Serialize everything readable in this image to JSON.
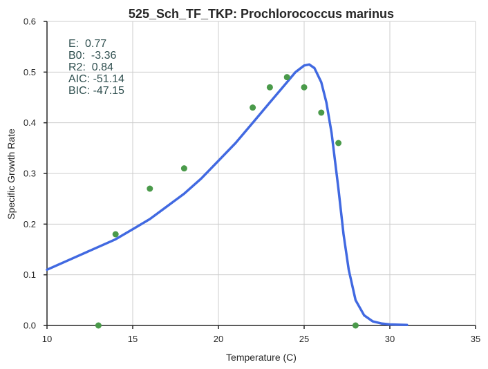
{
  "chart_data": {
    "type": "scatter",
    "title": "525_Sch_TF_TKP: Prochlorococcus marinus",
    "xlabel": "Temperature (C)",
    "ylabel": "Specific Growth Rate",
    "xlim": [
      10,
      35
    ],
    "ylim": [
      0.0,
      0.6
    ],
    "x_ticks": [
      "10",
      "15",
      "20",
      "25",
      "30",
      "35"
    ],
    "y_ticks": [
      "0.0",
      "0.1",
      "0.2",
      "0.3",
      "0.4",
      "0.5",
      "0.6"
    ],
    "grid": true,
    "points": {
      "color": "#4a9a4a",
      "x": [
        13,
        14,
        16,
        18,
        22,
        23,
        24,
        25,
        26,
        27,
        28
      ],
      "y": [
        0.0,
        0.18,
        0.27,
        0.31,
        0.43,
        0.47,
        0.49,
        0.47,
        0.42,
        0.36,
        0.0
      ]
    },
    "fit_curve": {
      "color": "#4169e1",
      "x": [
        10,
        11,
        12,
        13,
        14,
        15,
        16,
        17,
        18,
        19,
        20,
        21,
        22,
        23,
        24,
        24.5,
        25,
        25.3,
        25.6,
        26,
        26.3,
        26.6,
        27,
        27.3,
        27.6,
        28,
        28.5,
        29,
        29.5,
        30,
        30.5,
        31
      ],
      "y": [
        0.11,
        0.125,
        0.14,
        0.155,
        0.17,
        0.19,
        0.21,
        0.235,
        0.26,
        0.29,
        0.325,
        0.36,
        0.4,
        0.44,
        0.48,
        0.5,
        0.513,
        0.515,
        0.508,
        0.48,
        0.44,
        0.38,
        0.27,
        0.18,
        0.11,
        0.05,
        0.02,
        0.008,
        0.004,
        0.002,
        0.0015,
        0.001
      ]
    },
    "annotation": {
      "lines": [
        "E:  0.77",
        "B0:  -3.36",
        "R2:  0.84",
        "AIC: -51.14",
        "BIC: -47.15"
      ],
      "color": "#2f4f4f",
      "placement": "top-left"
    }
  }
}
